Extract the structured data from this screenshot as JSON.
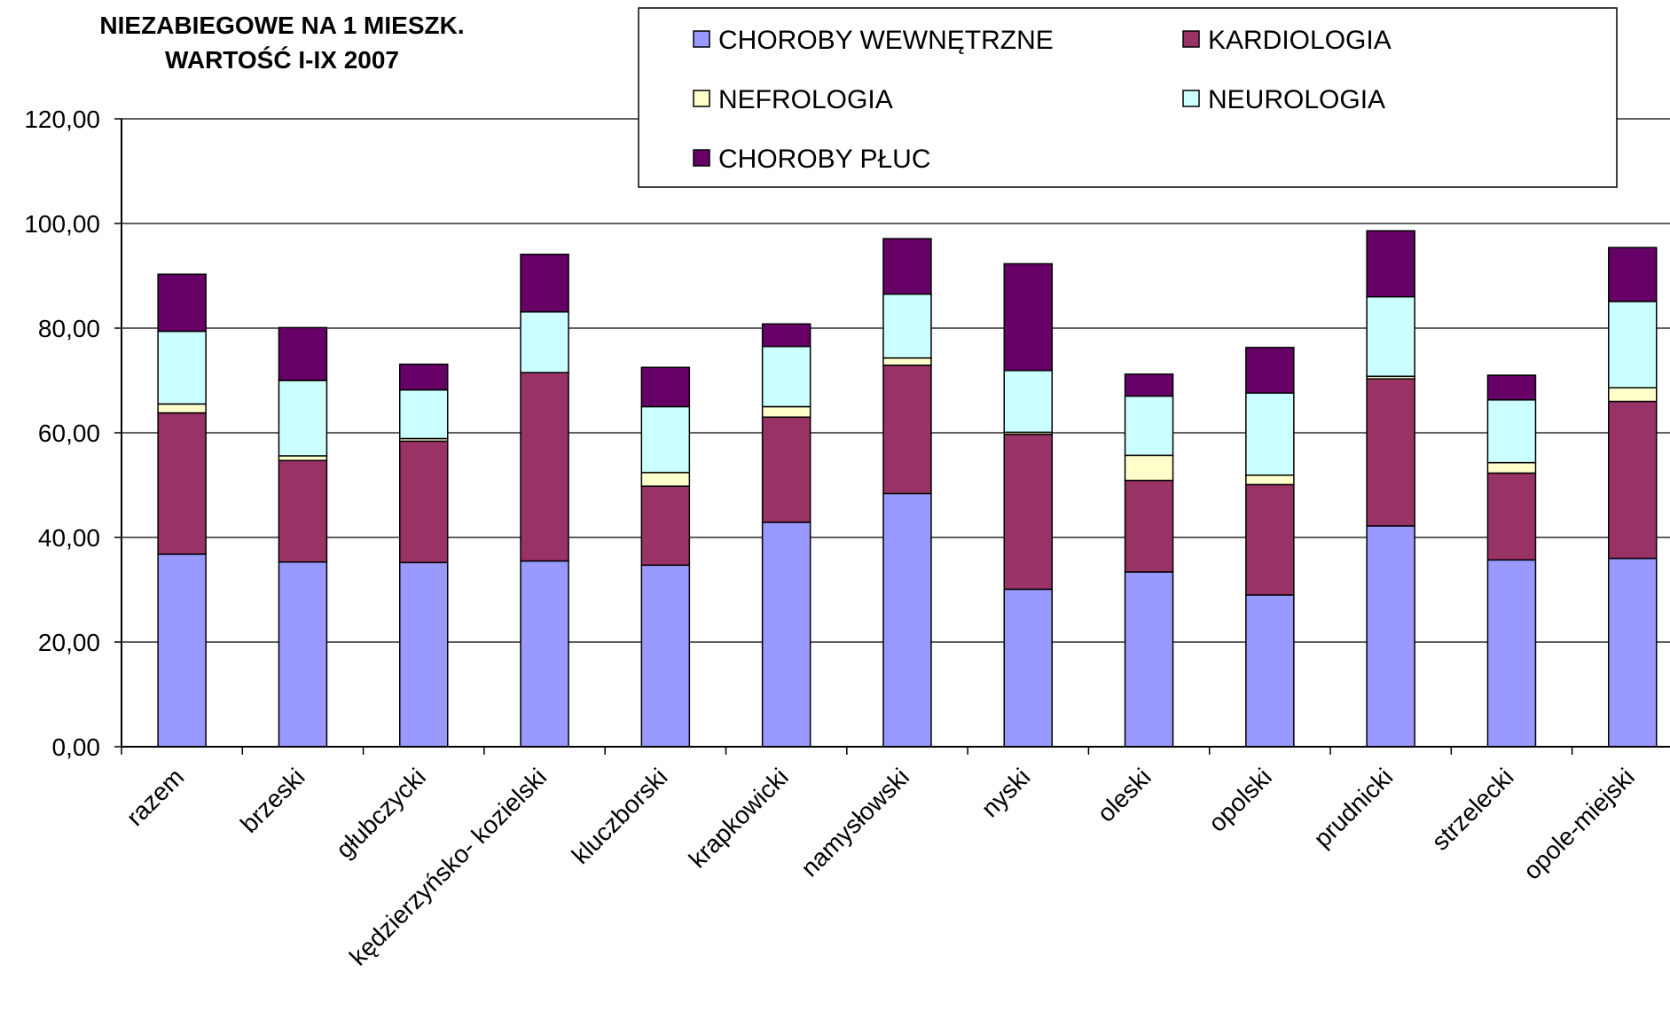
{
  "chart_data": {
    "type": "bar",
    "stacked": true,
    "title_lines": [
      "NIEZABIEGOWE NA 1 MIESZK.",
      "WARTOŚĆ I-IX 2007"
    ],
    "ylim": [
      0,
      120
    ],
    "yticks": [
      "0,00",
      "20,00",
      "40,00",
      "60,00",
      "80,00",
      "100,00",
      "120,00"
    ],
    "ytick_values": [
      0,
      20,
      40,
      60,
      80,
      100,
      120
    ],
    "grid": true,
    "legend_position": "top-right",
    "categories": [
      "razem",
      "brzeski",
      "głubczycki",
      "kędzierzyńsko- kozielski",
      "kluczborski",
      "krapkowicki",
      "namysłowski",
      "nyski",
      "oleski",
      "opolski",
      "prudnicki",
      "strzelecki",
      "opole-miejski"
    ],
    "series": [
      {
        "name": "CHOROBY WEWNĘTRZNE",
        "color": "#9999ff",
        "values": [
          36.8,
          35.3,
          35.2,
          35.5,
          34.7,
          42.9,
          48.4,
          30.1,
          33.4,
          29.0,
          42.2,
          35.7,
          36.0
        ]
      },
      {
        "name": "KARDIOLOGIA",
        "color": "#993366",
        "values": [
          27.0,
          19.4,
          23.2,
          36.0,
          15.1,
          20.1,
          24.5,
          29.6,
          17.5,
          21.1,
          28.1,
          16.6,
          30.0
        ]
      },
      {
        "name": "NEFROLOGIA",
        "color": "#ffffcc",
        "values": [
          1.7,
          0.9,
          0.5,
          0.0,
          2.6,
          2.0,
          1.4,
          0.4,
          4.8,
          1.8,
          0.5,
          2.0,
          2.6
        ]
      },
      {
        "name": "NEUROLOGIA",
        "color": "#ccffff",
        "values": [
          13.9,
          14.4,
          9.3,
          11.6,
          12.6,
          11.5,
          12.2,
          11.8,
          11.3,
          15.7,
          15.2,
          12.0,
          16.5
        ]
      },
      {
        "name": "CHOROBY PŁUC",
        "color": "#660066",
        "values": [
          10.9,
          10.1,
          4.9,
          11.0,
          7.5,
          4.3,
          10.6,
          20.4,
          4.2,
          8.7,
          12.6,
          4.7,
          10.3
        ]
      }
    ]
  }
}
